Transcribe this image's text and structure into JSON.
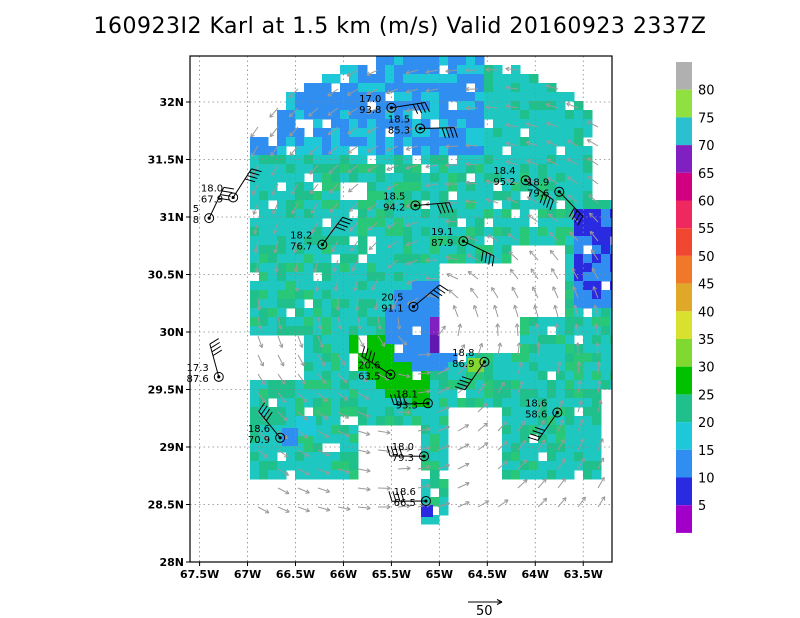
{
  "title": "160923I2 Karl at 1.5 km (m/s) Valid 20160923 2337Z",
  "map": {
    "lon_range": [
      -67.6,
      -63.2
    ],
    "lat_range": [
      28.0,
      32.4
    ],
    "lon_ticks": [
      {
        "value": -67.5,
        "label": "67.5W"
      },
      {
        "value": -67,
        "label": "67W"
      },
      {
        "value": -66.5,
        "label": "66.5W"
      },
      {
        "value": -66,
        "label": "66W"
      },
      {
        "value": -65.5,
        "label": "65.5W"
      },
      {
        "value": -65,
        "label": "65W"
      },
      {
        "value": -64.5,
        "label": "64.5W"
      },
      {
        "value": -64,
        "label": "64W"
      },
      {
        "value": -63.5,
        "label": "63.5W"
      }
    ],
    "lat_ticks": [
      {
        "value": 28.0,
        "label": "28N"
      },
      {
        "value": 28.5,
        "label": "28.5N"
      },
      {
        "value": 29.0,
        "label": "29N"
      },
      {
        "value": 29.5,
        "label": "29.5N"
      },
      {
        "value": 30.0,
        "label": "30N"
      },
      {
        "value": 30.5,
        "label": "30.5N"
      },
      {
        "value": 31.0,
        "label": "31N"
      },
      {
        "value": 31.5,
        "label": "31.5N"
      },
      {
        "value": 32.0,
        "label": "32N"
      }
    ],
    "grid": true,
    "storm_center": {
      "lon": -65.15,
      "lat": 30.1
    }
  },
  "colorbar": {
    "levels": [
      {
        "label": "5",
        "color": "#a000c8"
      },
      {
        "label": "10",
        "color": "#2a2ae0"
      },
      {
        "label": "15",
        "color": "#2f8ef0"
      },
      {
        "label": "20",
        "color": "#1ec8d8"
      },
      {
        "label": "25",
        "color": "#20c08c"
      },
      {
        "label": "30",
        "color": "#00c000"
      },
      {
        "label": "35",
        "color": "#80d830"
      },
      {
        "label": "40",
        "color": "#d8e030"
      },
      {
        "label": "45",
        "color": "#e0a828"
      },
      {
        "label": "50",
        "color": "#f07828"
      },
      {
        "label": "55",
        "color": "#f04830"
      },
      {
        "label": "60",
        "color": "#f02860"
      },
      {
        "label": "65",
        "color": "#d00080"
      },
      {
        "label": "70",
        "color": "#8020c0"
      },
      {
        "label": "75",
        "color": "#2ac0d0"
      },
      {
        "label": "80",
        "color": "#90e040"
      }
    ],
    "top_color": "#b0b0b0",
    "bottom_color": "#a000e0",
    "tick_labels": [
      "5",
      "10",
      "15",
      "20",
      "25",
      "30",
      "35",
      "40",
      "45",
      "50",
      "55",
      "60",
      "65",
      "70",
      "75",
      "80"
    ]
  },
  "observations": [
    {
      "lon": -65.5,
      "lat": 31.95,
      "line1": "17.0",
      "line2": "93.8"
    },
    {
      "lon": -65.2,
      "lat": 31.77,
      "line1": "18.5",
      "line2": "85.3"
    },
    {
      "lon": -64.1,
      "lat": 31.32,
      "line1": "18.4",
      "line2": "95.2"
    },
    {
      "lon": -63.75,
      "lat": 31.22,
      "line1": "18.9",
      "line2": "79.6"
    },
    {
      "lon": -67.15,
      "lat": 31.17,
      "line1": "18.0",
      "line2": "67.9"
    },
    {
      "lon": -67.4,
      "lat": 30.99,
      "line1": "5",
      "line2": "8"
    },
    {
      "lon": -65.25,
      "lat": 31.1,
      "line1": "18.5",
      "line2": "94.2"
    },
    {
      "lon": -64.75,
      "lat": 30.79,
      "line1": "19.1",
      "line2": "87.9"
    },
    {
      "lon": -66.22,
      "lat": 30.76,
      "line1": "18.2",
      "line2": "76.7"
    },
    {
      "lon": -65.27,
      "lat": 30.22,
      "line1": "20.5",
      "line2": "91.1"
    },
    {
      "lon": -64.53,
      "lat": 29.74,
      "line1": "18.8",
      "line2": "86.9"
    },
    {
      "lon": -65.51,
      "lat": 29.63,
      "line1": "20.6",
      "line2": "63.5"
    },
    {
      "lon": -67.3,
      "lat": 29.61,
      "line1": "17.3",
      "line2": "87.6"
    },
    {
      "lon": -65.12,
      "lat": 29.38,
      "line1": "18.1",
      "line2": "93.3"
    },
    {
      "lon": -63.77,
      "lat": 29.3,
      "line1": "18.6",
      "line2": "58.6"
    },
    {
      "lon": -66.66,
      "lat": 29.08,
      "line1": "18.6",
      "line2": "70.9"
    },
    {
      "lon": -65.16,
      "lat": 28.92,
      "line1": "18.0",
      "line2": "79.3"
    },
    {
      "lon": -65.14,
      "lat": 28.53,
      "line1": "18.6",
      "line2": "66.5"
    }
  ],
  "reference_vector": {
    "label": "50"
  }
}
